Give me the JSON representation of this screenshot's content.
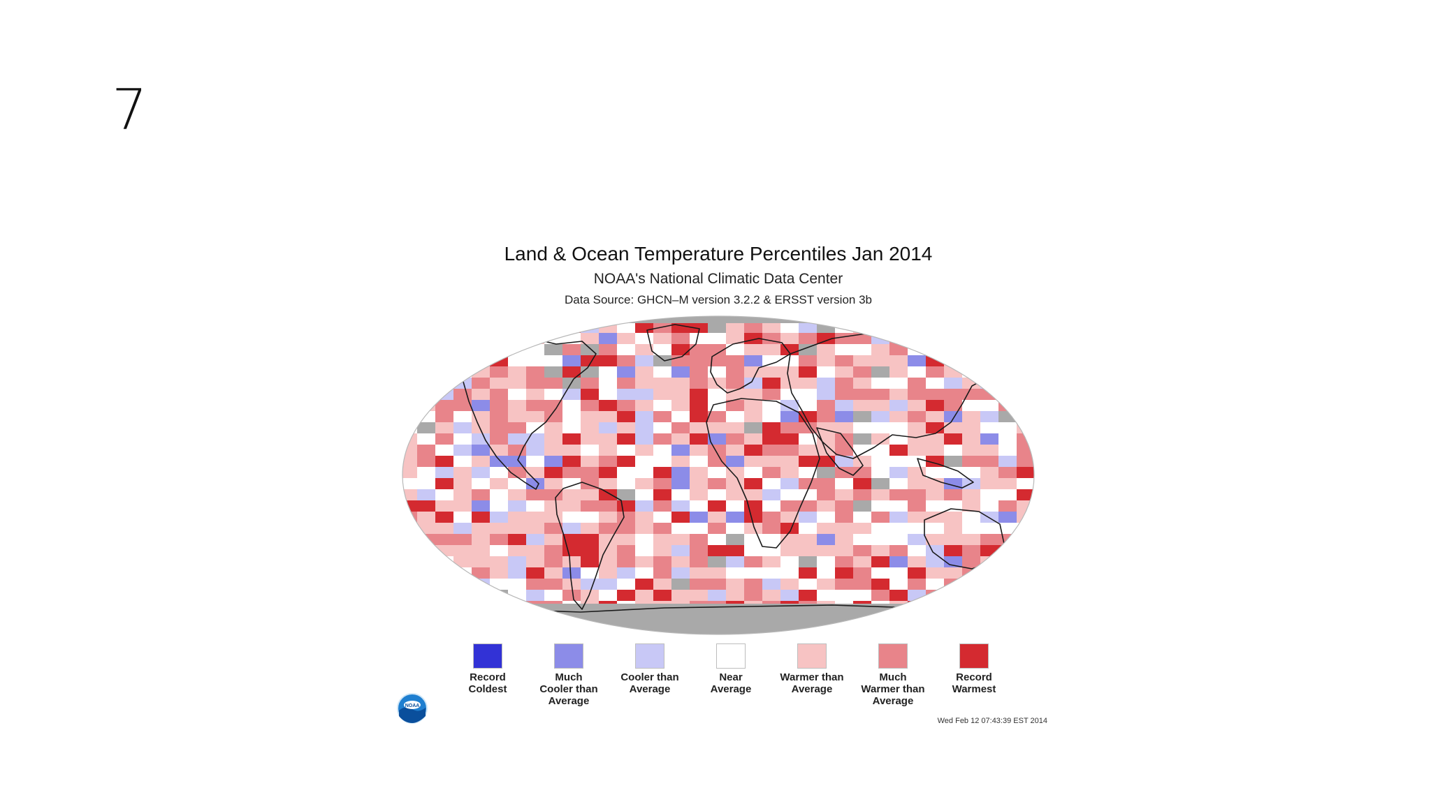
{
  "slide": {
    "number": "7"
  },
  "map": {
    "title": "Land & Ocean Temperature Percentiles Jan 2014",
    "subtitle": "NOAA's National Climatic Data Center",
    "source": "Data Source: GHCN–M version 3.2.2 & ERSST version 3b",
    "timestamp": "Wed Feb 12 07:43:39 EST 2014",
    "no_data_color": "#a9a9a9",
    "legend": [
      {
        "label": "Record\nColdest",
        "color": "#3232d6"
      },
      {
        "label": "Much\nCooler than\nAverage",
        "color": "#8c8ce8"
      },
      {
        "label": "Cooler than\nAverage",
        "color": "#c8c8f6"
      },
      {
        "label": "Near\nAverage",
        "color": "#ffffff"
      },
      {
        "label": "Warmer than\nAverage",
        "color": "#f7c3c3"
      },
      {
        "label": "Much\nWarmer than\nAverage",
        "color": "#e8848a"
      },
      {
        "label": "Record\nWarmest",
        "color": "#d42a30"
      }
    ]
  },
  "logo": {
    "icon": "noaa-logo-icon",
    "text": "NOAA"
  }
}
